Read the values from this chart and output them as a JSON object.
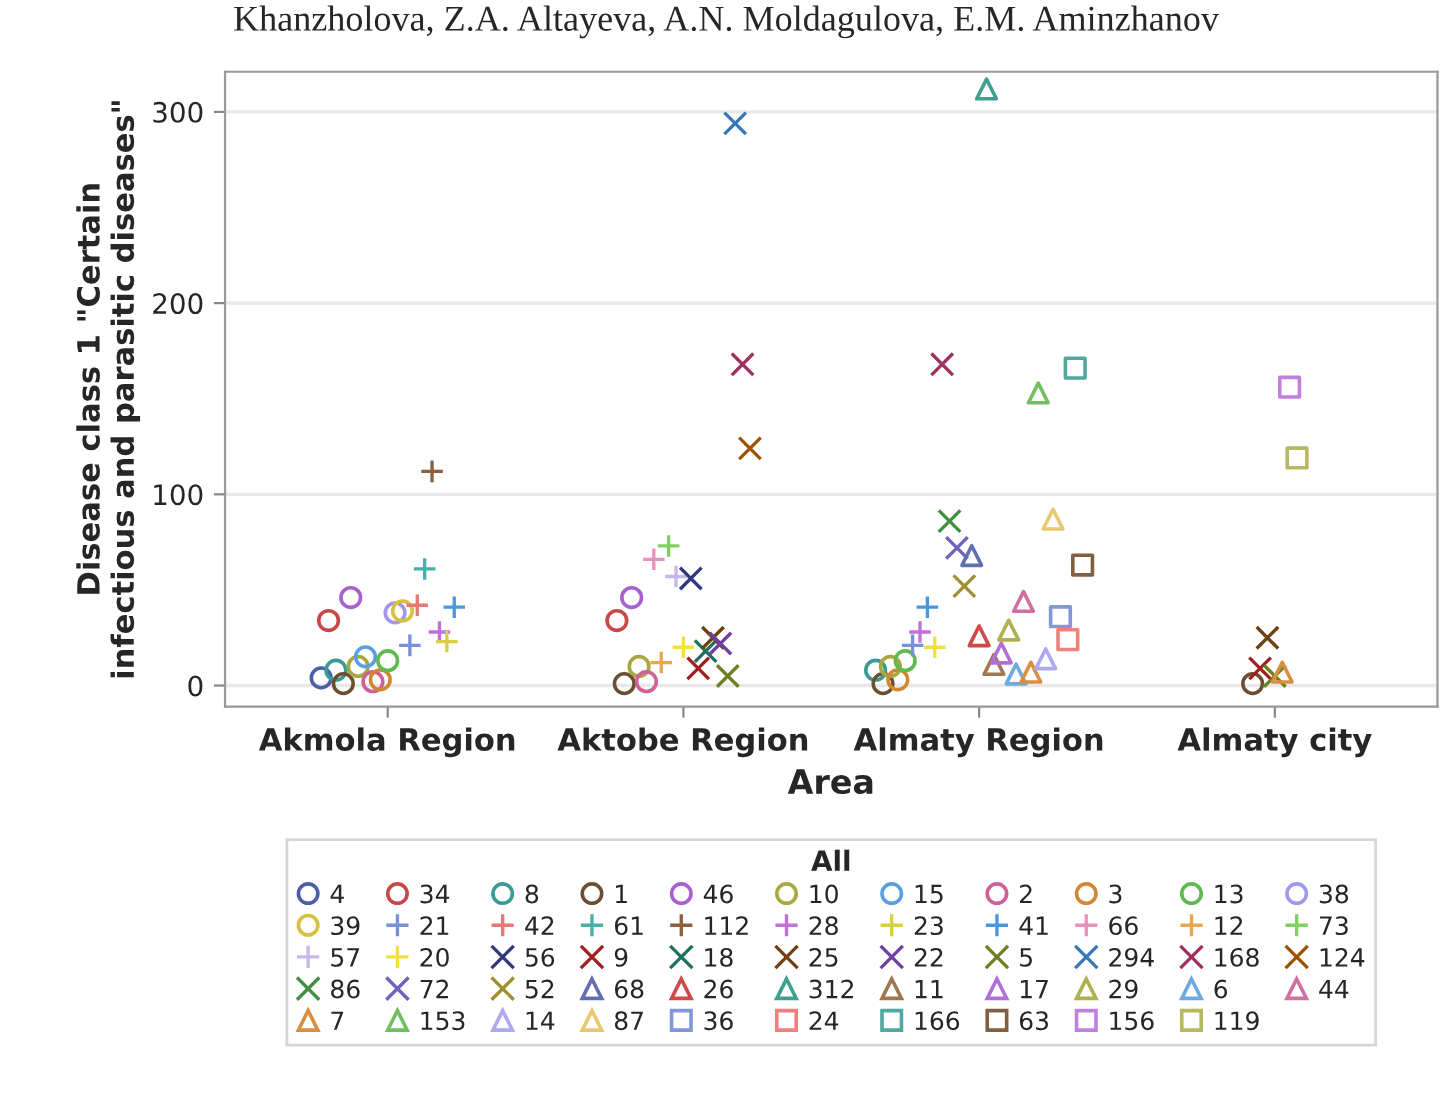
{
  "chart_data": {
    "type": "scatter",
    "xlabel": "Area",
    "ylabel": "Disease class 1 \"Certain\ninfectious and parasitic diseases\"",
    "legend_title": "All",
    "legend": "bottom",
    "grid": "y",
    "annotations": [
      "Khanzholova, Z.A. Altayeva, A.N. Moldagulova, E.M. Aminzhanov"
    ],
    "categories": [
      "Akmola Region",
      "Aktobe Region",
      "Almaty Region",
      "Almaty city"
    ],
    "ylim": [
      -11,
      321
    ],
    "yticks": [
      0,
      100,
      200,
      300
    ],
    "series": [
      {
        "name": "4",
        "color": "#4a5fa8",
        "marker": "circle",
        "x": [
          "Akmola Region"
        ],
        "values": [
          4
        ]
      },
      {
        "name": "34",
        "color": "#c84848",
        "marker": "circle",
        "x": [
          "Akmola Region",
          "Aktobe Region"
        ],
        "values": [
          34,
          34
        ]
      },
      {
        "name": "8",
        "color": "#3a9a94",
        "marker": "circle",
        "x": [
          "Akmola Region",
          "Almaty Region"
        ],
        "values": [
          8,
          8
        ]
      },
      {
        "name": "1",
        "color": "#6a5030",
        "marker": "circle",
        "x": [
          "Akmola Region",
          "Aktobe Region",
          "Almaty Region",
          "Almaty city"
        ],
        "values": [
          1,
          1,
          1,
          1
        ]
      },
      {
        "name": "46",
        "color": "#a860d0",
        "marker": "circle",
        "x": [
          "Akmola Region",
          "Aktobe Region"
        ],
        "values": [
          46,
          46
        ]
      },
      {
        "name": "10",
        "color": "#a8a840",
        "marker": "circle",
        "x": [
          "Akmola Region",
          "Aktobe Region",
          "Almaty Region"
        ],
        "values": [
          10,
          10,
          10
        ]
      },
      {
        "name": "15",
        "color": "#5aa0e0",
        "marker": "circle",
        "x": [
          "Akmola Region"
        ],
        "values": [
          15
        ]
      },
      {
        "name": "2",
        "color": "#d06098",
        "marker": "circle",
        "x": [
          "Akmola Region",
          "Aktobe Region"
        ],
        "values": [
          2,
          2
        ]
      },
      {
        "name": "3",
        "color": "#d08830",
        "marker": "circle",
        "x": [
          "Akmola Region",
          "Almaty Region"
        ],
        "values": [
          3,
          3
        ]
      },
      {
        "name": "13",
        "color": "#60b850",
        "marker": "circle",
        "x": [
          "Akmola Region",
          "Almaty Region"
        ],
        "values": [
          13,
          13
        ]
      },
      {
        "name": "38",
        "color": "#a098e8",
        "marker": "circle",
        "x": [
          "Akmola Region"
        ],
        "values": [
          38
        ]
      },
      {
        "name": "39",
        "color": "#d8c040",
        "marker": "circle",
        "x": [
          "Akmola Region"
        ],
        "values": [
          39
        ]
      },
      {
        "name": "21",
        "color": "#7890d8",
        "marker": "plus",
        "x": [
          "Akmola Region",
          "Almaty Region"
        ],
        "values": [
          21,
          21
        ]
      },
      {
        "name": "42",
        "color": "#e87878",
        "marker": "plus",
        "x": [
          "Akmola Region"
        ],
        "values": [
          42
        ]
      },
      {
        "name": "61",
        "color": "#48b0a8",
        "marker": "plus",
        "x": [
          "Akmola Region"
        ],
        "values": [
          61
        ]
      },
      {
        "name": "112",
        "color": "#8a6040",
        "marker": "plus",
        "x": [
          "Akmola Region"
        ],
        "values": [
          112
        ]
      },
      {
        "name": "28",
        "color": "#c070d8",
        "marker": "plus",
        "x": [
          "Akmola Region",
          "Almaty Region"
        ],
        "values": [
          28,
          28
        ]
      },
      {
        "name": "23",
        "color": "#d8d040",
        "marker": "plus",
        "x": [
          "Akmola Region"
        ],
        "values": [
          23
        ]
      },
      {
        "name": "41",
        "color": "#4898e0",
        "marker": "plus",
        "x": [
          "Akmola Region",
          "Almaty Region"
        ],
        "values": [
          41,
          41
        ]
      },
      {
        "name": "66",
        "color": "#e890c0",
        "marker": "plus",
        "x": [
          "Aktobe Region"
        ],
        "values": [
          66
        ]
      },
      {
        "name": "12",
        "color": "#e8a850",
        "marker": "plus",
        "x": [
          "Aktobe Region"
        ],
        "values": [
          12
        ]
      },
      {
        "name": "73",
        "color": "#80d060",
        "marker": "plus",
        "x": [
          "Aktobe Region"
        ],
        "values": [
          73
        ]
      },
      {
        "name": "57",
        "color": "#c8b8e8",
        "marker": "plus",
        "x": [
          "Aktobe Region"
        ],
        "values": [
          57
        ]
      },
      {
        "name": "20",
        "color": "#f0e040",
        "marker": "plus",
        "x": [
          "Aktobe Region",
          "Almaty Region"
        ],
        "values": [
          20,
          20
        ]
      },
      {
        "name": "56",
        "color": "#303880",
        "marker": "cross",
        "x": [
          "Aktobe Region"
        ],
        "values": [
          56
        ]
      },
      {
        "name": "9",
        "color": "#a02020",
        "marker": "cross",
        "x": [
          "Aktobe Region",
          "Almaty city"
        ],
        "values": [
          9,
          9
        ]
      },
      {
        "name": "18",
        "color": "#207060",
        "marker": "cross",
        "x": [
          "Aktobe Region"
        ],
        "values": [
          18
        ]
      },
      {
        "name": "25",
        "color": "#704010",
        "marker": "cross",
        "x": [
          "Aktobe Region",
          "Almaty city"
        ],
        "values": [
          25,
          25
        ]
      },
      {
        "name": "22",
        "color": "#7040a0",
        "marker": "cross",
        "x": [
          "Aktobe Region"
        ],
        "values": [
          22
        ]
      },
      {
        "name": "5",
        "color": "#708020",
        "marker": "cross",
        "x": [
          "Aktobe Region",
          "Almaty city"
        ],
        "values": [
          5,
          5
        ]
      },
      {
        "name": "294",
        "color": "#3878b8",
        "marker": "cross",
        "x": [
          "Aktobe Region"
        ],
        "values": [
          294
        ]
      },
      {
        "name": "168",
        "color": "#a03060",
        "marker": "cross",
        "x": [
          "Aktobe Region",
          "Almaty Region"
        ],
        "values": [
          168,
          168
        ]
      },
      {
        "name": "124",
        "color": "#a05000",
        "marker": "cross",
        "x": [
          "Aktobe Region"
        ],
        "values": [
          124
        ]
      },
      {
        "name": "86",
        "color": "#409040",
        "marker": "cross",
        "x": [
          "Almaty Region"
        ],
        "values": [
          86
        ]
      },
      {
        "name": "72",
        "color": "#7060c0",
        "marker": "cross",
        "x": [
          "Almaty Region"
        ],
        "values": [
          72
        ]
      },
      {
        "name": "52",
        "color": "#a09030",
        "marker": "cross",
        "x": [
          "Almaty Region"
        ],
        "values": [
          52
        ]
      },
      {
        "name": "68",
        "color": "#6070b0",
        "marker": "triangle",
        "x": [
          "Almaty Region"
        ],
        "values": [
          68
        ]
      },
      {
        "name": "26",
        "color": "#d04848",
        "marker": "triangle",
        "x": [
          "Almaty Region"
        ],
        "values": [
          26
        ]
      },
      {
        "name": "312",
        "color": "#40a090",
        "marker": "triangle",
        "x": [
          "Almaty Region"
        ],
        "values": [
          312
        ]
      },
      {
        "name": "11",
        "color": "#a07850",
        "marker": "triangle",
        "x": [
          "Almaty Region"
        ],
        "values": [
          11
        ]
      },
      {
        "name": "17",
        "color": "#b070d8",
        "marker": "triangle",
        "x": [
          "Almaty Region"
        ],
        "values": [
          17
        ]
      },
      {
        "name": "29",
        "color": "#b0b050",
        "marker": "triangle",
        "x": [
          "Almaty Region"
        ],
        "values": [
          29
        ]
      },
      {
        "name": "6",
        "color": "#70a8e0",
        "marker": "triangle",
        "x": [
          "Almaty Region"
        ],
        "values": [
          6
        ]
      },
      {
        "name": "44",
        "color": "#d070a0",
        "marker": "triangle",
        "x": [
          "Almaty Region"
        ],
        "values": [
          44
        ]
      },
      {
        "name": "7",
        "color": "#d89040",
        "marker": "triangle",
        "x": [
          "Almaty Region",
          "Almaty city"
        ],
        "values": [
          7,
          7
        ]
      },
      {
        "name": "153",
        "color": "#70c060",
        "marker": "triangle",
        "x": [
          "Almaty Region"
        ],
        "values": [
          153
        ]
      },
      {
        "name": "14",
        "color": "#b0a8f0",
        "marker": "triangle",
        "x": [
          "Almaty Region"
        ],
        "values": [
          14
        ]
      },
      {
        "name": "87",
        "color": "#e8c870",
        "marker": "triangle",
        "x": [
          "Almaty Region"
        ],
        "values": [
          87
        ]
      },
      {
        "name": "36",
        "color": "#8098d8",
        "marker": "square",
        "x": [
          "Almaty Region"
        ],
        "values": [
          36
        ]
      },
      {
        "name": "24",
        "color": "#f08080",
        "marker": "square",
        "x": [
          "Almaty Region"
        ],
        "values": [
          24
        ]
      },
      {
        "name": "166",
        "color": "#50a8a0",
        "marker": "square",
        "x": [
          "Almaty Region"
        ],
        "values": [
          166
        ]
      },
      {
        "name": "63",
        "color": "#806040",
        "marker": "square",
        "x": [
          "Almaty Region"
        ],
        "values": [
          63
        ]
      },
      {
        "name": "156",
        "color": "#c080e0",
        "marker": "square",
        "x": [
          "Almaty city"
        ],
        "values": [
          156
        ]
      },
      {
        "name": "119",
        "color": "#b8b860",
        "marker": "square",
        "x": [
          "Almaty city"
        ],
        "values": [
          119
        ]
      }
    ]
  }
}
